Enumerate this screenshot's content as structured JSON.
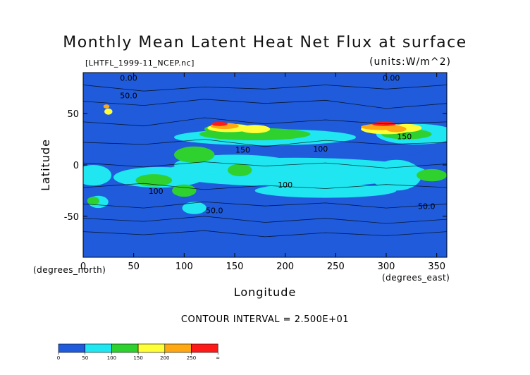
{
  "title": "Monthly Mean Latent Heat Net Flux at surface",
  "file_label": "[LHTFL_1999-11_NCEP.nc]",
  "units_label": "(units:W/m^2)",
  "contour_note": "CONTOUR INTERVAL = 2.500E+01",
  "chart_data": {
    "type": "heatmap",
    "title": "Monthly Mean Latent Heat Net Flux at surface",
    "xlabel": "Longitude",
    "ylabel": "Latitude",
    "x_unit_label": "(degrees_east)",
    "y_unit_label": "(degrees_north)",
    "xlim": [
      0,
      360
    ],
    "ylim": [
      -90,
      90
    ],
    "x_ticks": [
      0,
      50,
      100,
      150,
      200,
      250,
      300,
      350
    ],
    "y_ticks": [
      50,
      0,
      -50
    ],
    "contour_interval": 25,
    "contour_labels": [
      {
        "text": "0.00",
        "lon": 45,
        "lat": 82
      },
      {
        "text": "50.0",
        "lon": 45,
        "lat": 65
      },
      {
        "text": "150",
        "lon": 158,
        "lat": 12
      },
      {
        "text": "100",
        "lon": 72,
        "lat": -28
      },
      {
        "text": "100",
        "lon": 200,
        "lat": -22
      },
      {
        "text": "50.0",
        "lon": 130,
        "lat": -47
      },
      {
        "text": "50.0",
        "lon": 340,
        "lat": -43
      },
      {
        "text": "100",
        "lon": 235,
        "lat": 13
      },
      {
        "text": "0.00",
        "lon": 305,
        "lat": 82
      },
      {
        "text": "150",
        "lon": 318,
        "lat": 25
      }
    ],
    "colorbar": {
      "colors": [
        "#1f5bdb",
        "#1fe6f0",
        "#2fd12f",
        "#ffff38",
        "#ffa814",
        "#ff1a1a"
      ],
      "tick_labels": [
        "0",
        "50",
        "100",
        "150",
        "200",
        "250",
        "∞"
      ]
    }
  }
}
